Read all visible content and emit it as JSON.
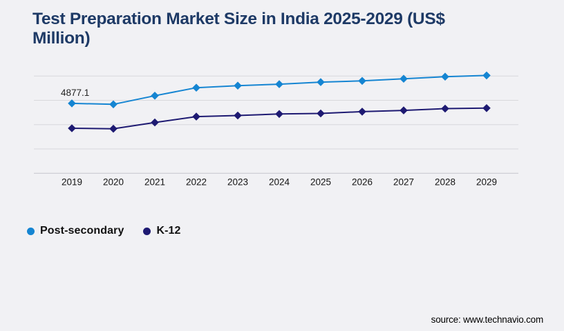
{
  "header": {
    "title_lines": [
      "Test Preparation Market Size in India 2025-2029 (US$",
      "Million)"
    ]
  },
  "colors": {
    "background": "#f1f1f4",
    "title": "#1e3a66",
    "gridline": "#d8d8dc",
    "axis_line": "#c6c6cb",
    "post_secondary": "#1585d2",
    "k12": "#1e1a72",
    "tick_text": "#141414"
  },
  "legend": [
    {
      "label": "Post-secondary",
      "color": "#1585d2"
    },
    {
      "label": "K-12",
      "color": "#1e1a72"
    }
  ],
  "source": "source: www.technavio.com",
  "chart_data": {
    "type": "line",
    "title": "Test Preparation Market Size in India 2025-2029 (US$ Million)",
    "xlabel": "",
    "ylabel": "US$ Million",
    "categories": [
      "2019",
      "2020",
      "2021",
      "2022",
      "2023",
      "2024",
      "2025",
      "2026",
      "2027",
      "2028",
      "2029"
    ],
    "series": [
      {
        "name": "Post-secondary",
        "color": "#1585d2",
        "marker": "diamond",
        "values": [
          4877.1,
          4835,
          5190,
          5520,
          5605,
          5665,
          5750,
          5800,
          5890,
          5975,
          6025
        ]
      },
      {
        "name": "K-12",
        "color": "#1e1a72",
        "marker": "diamond",
        "values": [
          3850,
          3830,
          4090,
          4330,
          4375,
          4440,
          4460,
          4535,
          4585,
          4660,
          4680
        ]
      }
    ],
    "data_label": {
      "series": "Post-secondary",
      "category": "2019",
      "text": "4877.1"
    },
    "ylim": [
      2000,
      6000
    ],
    "grid_step": 1000,
    "y_axis_labels_visible": false,
    "grid": "horizontal",
    "legend_position": "bottom-left"
  }
}
